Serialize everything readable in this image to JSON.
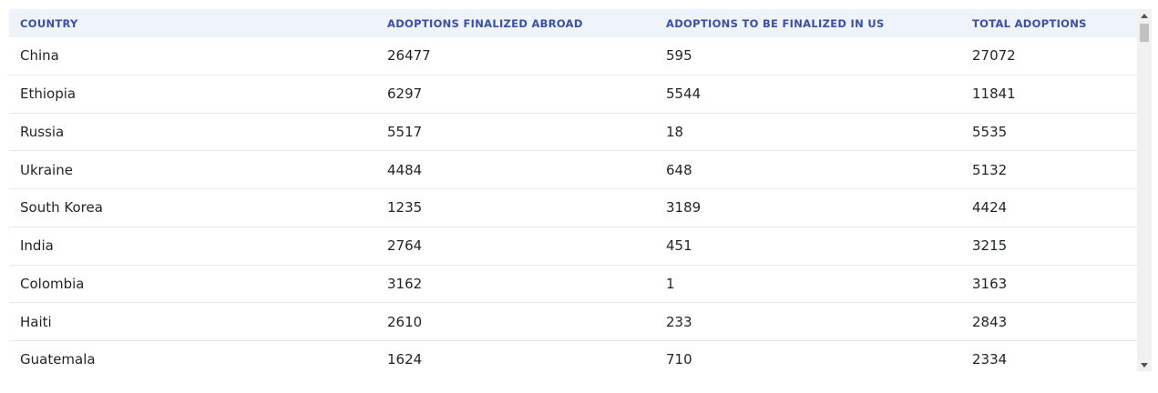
{
  "table": {
    "headers": [
      "COUNTRY",
      "ADOPTIONS FINALIZED ABROAD",
      "ADOPTIONS TO BE FINALIZED IN US",
      "TOTAL ADOPTIONS"
    ],
    "rows": [
      [
        "China",
        "26477",
        "595",
        "27072"
      ],
      [
        "Ethiopia",
        "6297",
        "5544",
        "11841"
      ],
      [
        "Russia",
        "5517",
        "18",
        "5535"
      ],
      [
        "Ukraine",
        "4484",
        "648",
        "5132"
      ],
      [
        "South Korea",
        "1235",
        "3189",
        "4424"
      ],
      [
        "India",
        "2764",
        "451",
        "3215"
      ],
      [
        "Colombia",
        "3162",
        "1",
        "3163"
      ],
      [
        "Haiti",
        "2610",
        "233",
        "2843"
      ],
      [
        "Guatemala",
        "1624",
        "710",
        "2334"
      ]
    ]
  },
  "scrollbar": {
    "up_icon": "triangle-up",
    "down_icon": "triangle-down"
  },
  "colors": {
    "header_bg": "#eef3fc",
    "header_text": "#3b4fa8",
    "row_border": "#e6e8ec"
  }
}
